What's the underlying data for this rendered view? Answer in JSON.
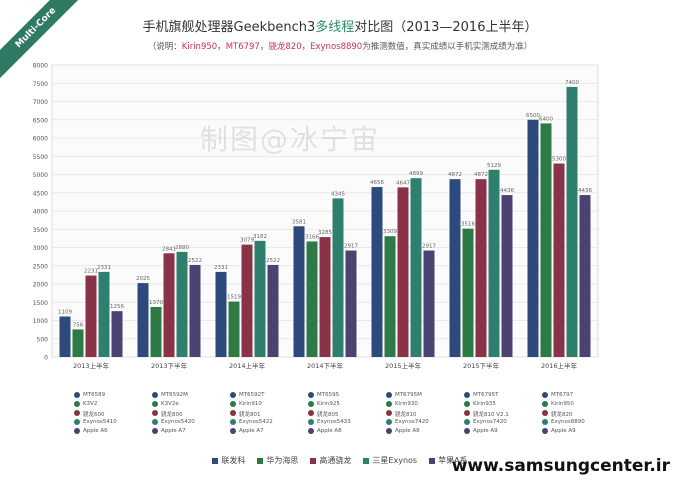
{
  "badge": "Multi-Core",
  "title_pre": "手机旗舰处理器Geekbench3",
  "title_hl": "多线程",
  "title_post": "对比图（2013—2016上半年）",
  "subtitle_pre": "（说明：",
  "subtitle_items": [
    "Kirin950",
    "MT6797",
    "骁龙820",
    "Exynos8890"
  ],
  "subtitle_post": "为推测数值，真实成绩以手机实测成绩为准）",
  "watermark": "制图@冰宁宙",
  "site": "www.samsungcenter.ir",
  "colors": [
    "#2e4a7d",
    "#2e7a46",
    "#8a3248",
    "#2f7f6e",
    "#4b4272"
  ],
  "chart_data": {
    "type": "bar",
    "title": "手机旗舰处理器Geekbench3多线程对比图（2013—2016上半年）",
    "categories": [
      "2013上半年",
      "2013下半年",
      "2014上半年",
      "2014下半年",
      "2015上半年",
      "2015下半年",
      "2016上半年"
    ],
    "ylim": [
      0,
      8000
    ],
    "ytick_step": 500,
    "grid": true,
    "legend_position": "bottom",
    "series": [
      {
        "name": "联发科",
        "values": [
          1109,
          2025,
          2331,
          3581,
          4656,
          4872,
          6500
        ]
      },
      {
        "name": "华为海思",
        "values": [
          756,
          1370,
          1519,
          3166,
          3309,
          3516,
          6400
        ]
      },
      {
        "name": "高通骁龙",
        "values": [
          2231,
          2841,
          3079,
          3285,
          4647,
          4872,
          5300
        ]
      },
      {
        "name": "三星Exynos",
        "values": [
          2331,
          2880,
          3182,
          4345,
          4899,
          5129,
          7400
        ]
      },
      {
        "name": "苹果A系",
        "values": [
          1256,
          2522,
          2522,
          2917,
          2917,
          4436,
          4436
        ]
      }
    ],
    "chips": [
      [
        "MT6589",
        "K3V2",
        "骁龙600",
        "Exynos5410",
        "Apple A6"
      ],
      [
        "MT6592M",
        "K3V2e",
        "骁龙800",
        "Exynos5420",
        "Apple A7"
      ],
      [
        "MT6592T",
        "Kirin910",
        "骁龙801",
        "Exynos5422",
        "Apple A7"
      ],
      [
        "MT6595",
        "Kirin925",
        "骁龙805",
        "Exynos5433",
        "Apple A8"
      ],
      [
        "MT6795M",
        "Kirin930",
        "骁龙810",
        "Exynos7420",
        "Apple A8"
      ],
      [
        "MT6795T",
        "Kirin935",
        "骁龙810 V2.1",
        "Exynos7420",
        "Apple A9"
      ],
      [
        "MT6797",
        "Kirin950",
        "骁龙820",
        "Exynos8890",
        "Apple A9"
      ]
    ]
  }
}
